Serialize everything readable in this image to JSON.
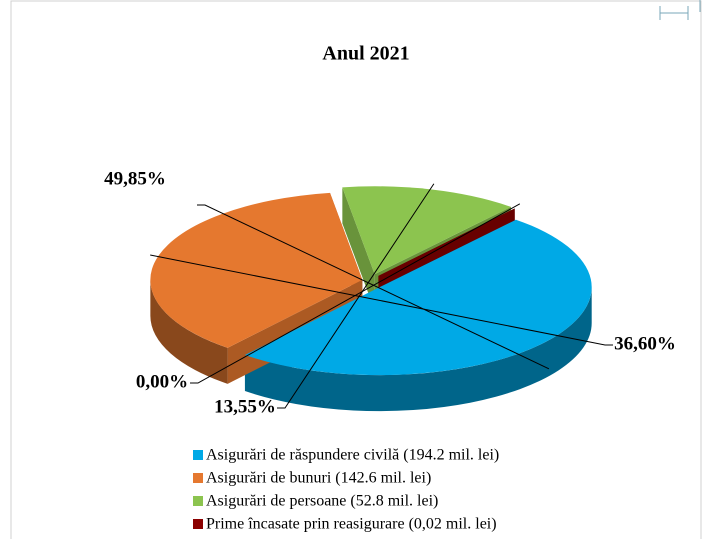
{
  "chart_data": {
    "type": "pie",
    "title": "Anul  2021",
    "categories": [
      "Asigurări de răspundere civilă (194.2 mil. lei)",
      "Asigurări de bunuri (142.6 mil. lei)",
      "Asigurări de persoane (52.8 mil. lei)",
      "Prime încasate prin reasigurare (0,02 mil. lei)"
    ],
    "series": [
      {
        "name": "Anul 2021",
        "values": [
          49.85,
          36.6,
          13.55,
          0.0
        ],
        "value_labels": [
          "49,85%",
          "36,60%",
          "13,55%",
          "0,00%"
        ]
      }
    ],
    "colors": [
      "#00a9e6",
      "#e5782f",
      "#8cc44f",
      "#8b0000"
    ]
  }
}
